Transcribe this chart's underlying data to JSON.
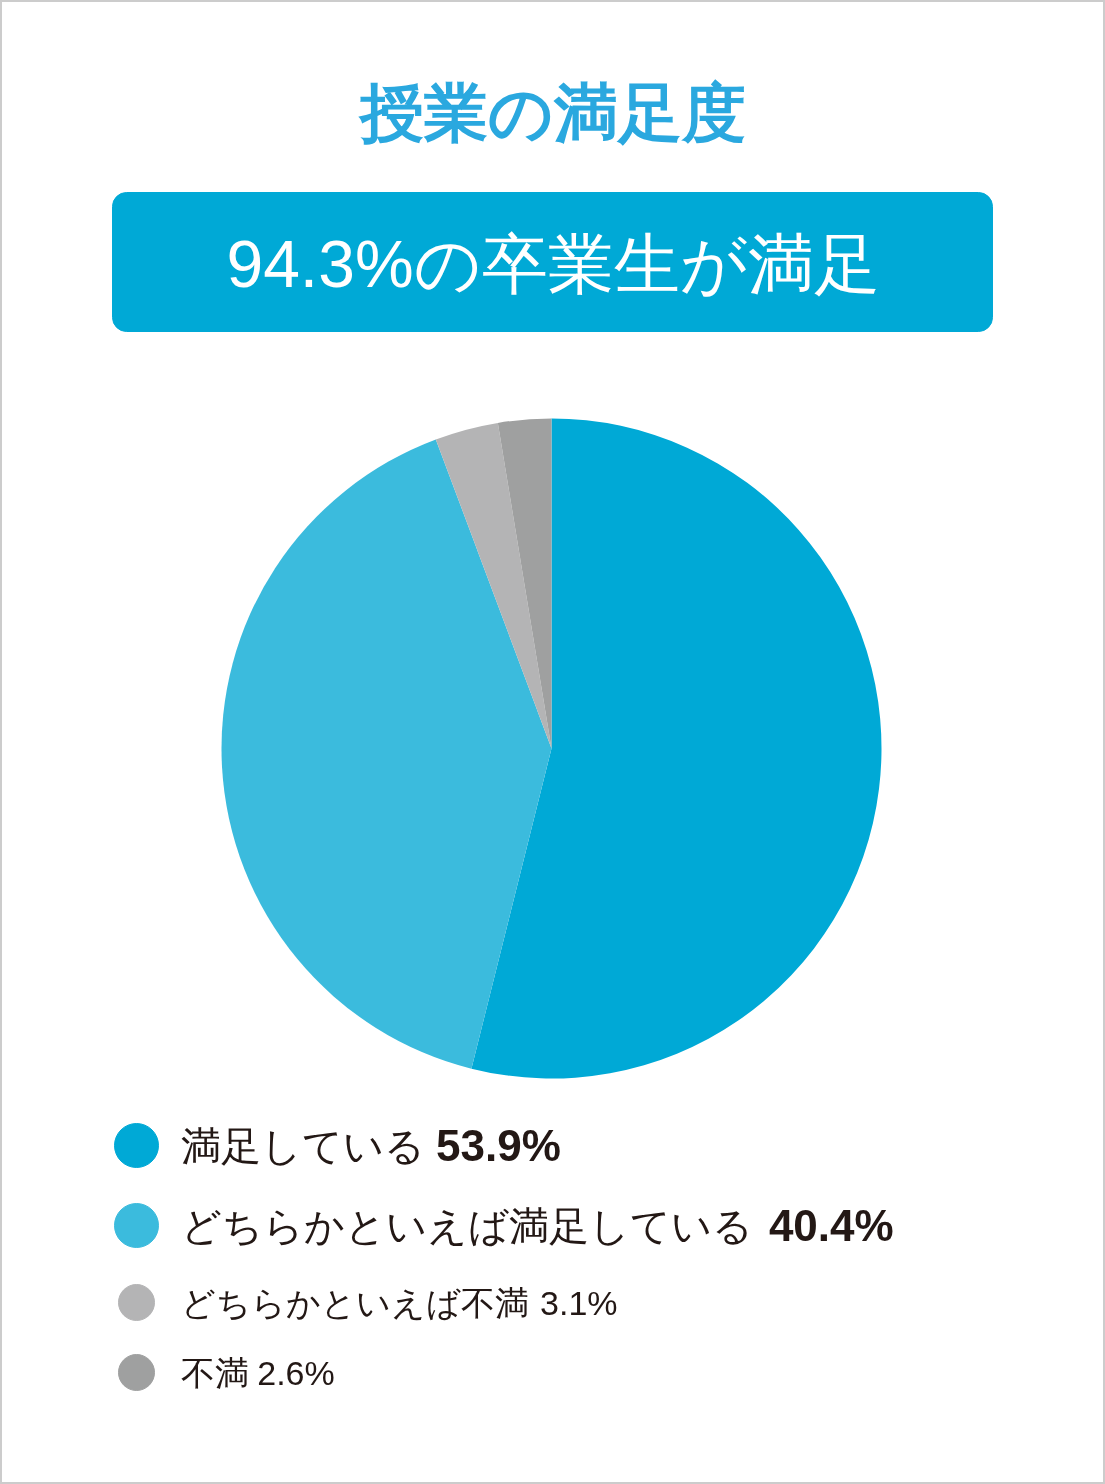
{
  "chart_data": {
    "type": "pie",
    "title": "授業の満足度",
    "subtitle": "94.3%の卒業生が満足",
    "categories": [
      "満足している",
      "どちらかといえば満足している",
      "どちらかといえば不満",
      "不満"
    ],
    "values": [
      53.9,
      40.4,
      3.1,
      2.6
    ],
    "value_labels": [
      "53.9%",
      "40.4%",
      " 3.1%",
      " 2.6%"
    ],
    "colors": [
      "#00a9d6",
      "#3bbbdd",
      "#b4b4b5",
      "#9fa0a0"
    ],
    "legend": "bottom"
  }
}
